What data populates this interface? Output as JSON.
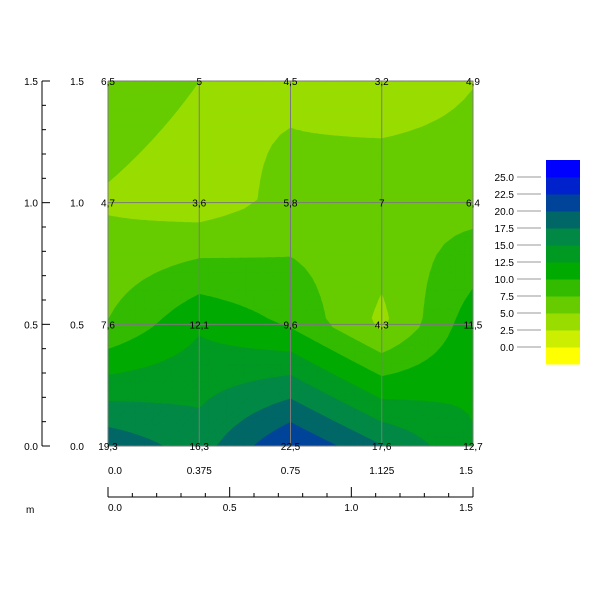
{
  "chart_data": {
    "type": "heatmap",
    "title": "",
    "x": [
      0.0,
      0.375,
      0.75,
      1.125,
      1.5
    ],
    "y": [
      0.0,
      0.5,
      1.0,
      1.5
    ],
    "z": [
      [
        19.3,
        16.3,
        22.5,
        17.6,
        12.7
      ],
      [
        7.6,
        12.1,
        9.6,
        4.3,
        11.5
      ],
      [
        4.7,
        3.6,
        5.8,
        7,
        6.4
      ],
      [
        6.5,
        5,
        4.5,
        3.2,
        4.9
      ]
    ],
    "z_labels": [
      [
        "19,3",
        "16,3",
        "22,5",
        "17,6",
        "12,7"
      ],
      [
        "7,6",
        "12,1",
        "9,6",
        "4,3",
        "11,5"
      ],
      [
        "4,7",
        "3,6",
        "5,8",
        "7",
        "6,4"
      ],
      [
        "6,5",
        "5",
        "4,5",
        "3,2",
        "4,9"
      ]
    ],
    "xlim": [
      0,
      1.5
    ],
    "ylim": [
      0,
      1.5
    ],
    "x_ticks_top": [
      "0.0",
      "0.375",
      "0.75",
      "1.125",
      "1.5"
    ],
    "x_ticks_bottom": [
      "0.0",
      "0.5",
      "1.0",
      "1.5"
    ],
    "y_ticks_outer": [
      "0.0",
      "0.5",
      "1.0",
      "1.5"
    ],
    "y_ticks_inner": [
      "0.0",
      "0.5",
      "1.0",
      "1.5"
    ],
    "unit_label": "m",
    "grid": true,
    "legend": {
      "placement": "right",
      "levels": [
        "0.0",
        "2.5",
        "5.0",
        "7.5",
        "10.0",
        "12.5",
        "15.0",
        "17.5",
        "20.0",
        "22.5",
        "25.0"
      ],
      "colors": [
        "#FFFF00",
        "#CCEE00",
        "#99DD00",
        "#66CC00",
        "#33BB00",
        "#00AA00",
        "#009922",
        "#008844",
        "#006666",
        "#004499",
        "#0022CC",
        "#0000FF"
      ]
    }
  }
}
